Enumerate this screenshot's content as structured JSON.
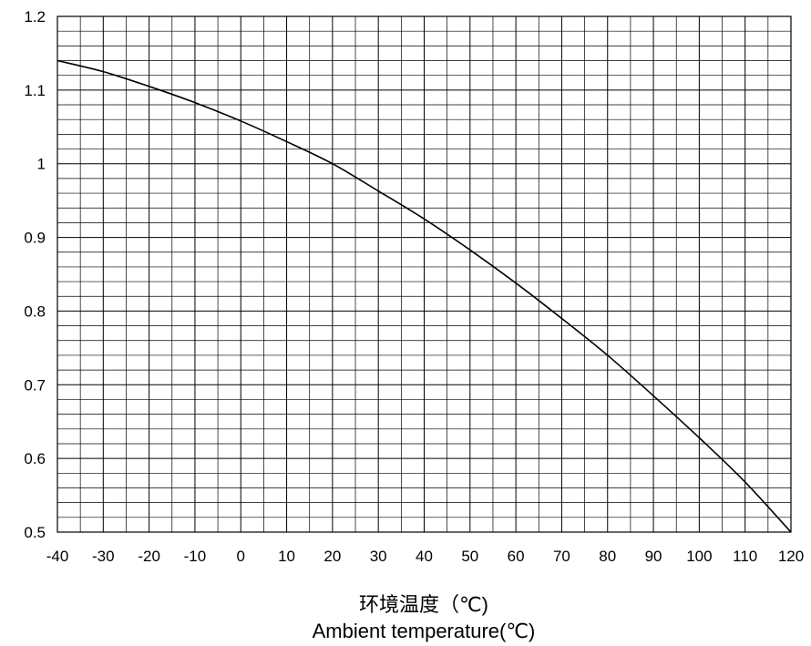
{
  "chart_data": {
    "type": "line",
    "title": "",
    "xlabel": "环境温度（℃)",
    "xlabel_en": "Ambient temperature(℃)",
    "ylabel": "",
    "xlim": [
      -40,
      120
    ],
    "ylim": [
      0.5,
      1.2
    ],
    "x_ticks": [
      -40,
      -30,
      -20,
      -10,
      0,
      10,
      20,
      30,
      40,
      50,
      60,
      70,
      80,
      90,
      100,
      110,
      120
    ],
    "y_ticks": [
      0.5,
      0.6,
      0.7,
      0.8,
      0.9,
      1,
      1.1,
      1.2
    ],
    "x_tick_labels": [
      "-40",
      "-30",
      "-20",
      "-10",
      "0",
      "10",
      "20",
      "30",
      "40",
      "50",
      "60",
      "70",
      "80",
      "90",
      "100",
      "110",
      "120"
    ],
    "y_tick_labels": [
      "0.5",
      "0.6",
      "0.7",
      "0.8",
      "0.9",
      "1",
      "1.1",
      "1.2"
    ],
    "minor_grid": {
      "x_step": 5,
      "y_step": 0.02
    },
    "grid": true,
    "series": [
      {
        "color": "#000000",
        "x": [
          -40,
          -30,
          -20,
          -10,
          0,
          10,
          20,
          30,
          40,
          50,
          60,
          70,
          80,
          90,
          100,
          110,
          120
        ],
        "y": [
          1.14,
          1.125,
          1.105,
          1.083,
          1.058,
          1.03,
          1.0,
          0.963,
          0.925,
          0.883,
          0.838,
          0.79,
          0.74,
          0.685,
          0.628,
          0.568,
          0.5
        ]
      }
    ]
  }
}
